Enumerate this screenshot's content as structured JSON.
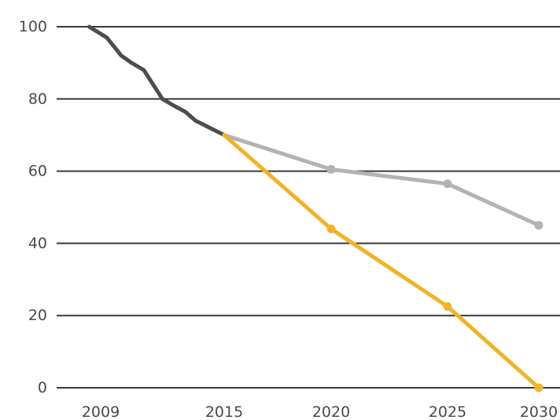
{
  "chart_data": {
    "type": "line",
    "title": "",
    "xlabel": "",
    "ylabel": "",
    "xlim": [
      2006.5,
      2031.0
    ],
    "ylim": [
      0,
      100
    ],
    "x_ticks": [
      2009,
      2015,
      2020,
      2025,
      2030
    ],
    "y_ticks": [
      0,
      20,
      40,
      60,
      80,
      100
    ],
    "grid": "horizontal",
    "legend": "none",
    "series": [
      {
        "color": "#4d4d4d",
        "markers": false,
        "points": [
          [
            2008.5,
            100
          ],
          [
            2009.3,
            97
          ],
          [
            2010.0,
            92
          ],
          [
            2010.5,
            90
          ],
          [
            2011.1,
            88
          ],
          [
            2012.0,
            80
          ],
          [
            2012.6,
            78
          ],
          [
            2013.1,
            76.5
          ],
          [
            2013.6,
            74
          ],
          [
            2014.3,
            72
          ],
          [
            2015.0,
            70
          ]
        ]
      },
      {
        "color": "#b3b3b3",
        "markers": true,
        "points": [
          [
            2015,
            70
          ],
          [
            2020,
            60.5
          ],
          [
            2025,
            56.5
          ],
          [
            2030,
            45
          ]
        ]
      },
      {
        "color": "#f0b429",
        "markers": true,
        "points": [
          [
            2015,
            70
          ],
          [
            2020,
            44
          ],
          [
            2025,
            22.5
          ],
          [
            2030,
            0
          ]
        ]
      }
    ]
  }
}
